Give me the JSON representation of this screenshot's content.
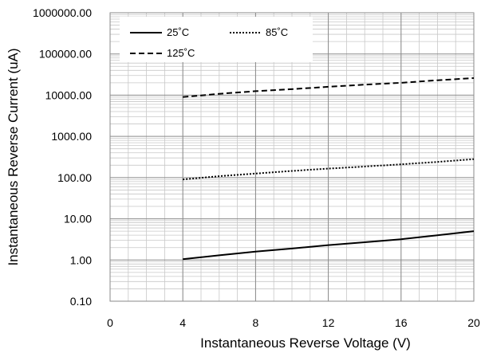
{
  "chart_data": {
    "type": "line",
    "xlabel": "Instantaneous  Reverse Voltage (V)",
    "ylabel": "Instantaneous Reverse Current (uA)",
    "y_scale": "log",
    "xlim": [
      0,
      20
    ],
    "ylim": [
      0.1,
      1000000
    ],
    "x_ticks": [
      0,
      4,
      8,
      12,
      16,
      20
    ],
    "x_tick_labels": [
      "0",
      "4",
      "8",
      "12",
      "16",
      "20"
    ],
    "y_ticks": [
      0.1,
      1,
      10,
      100,
      1000,
      10000,
      100000,
      1000000
    ],
    "y_tick_labels": [
      "0.10",
      "1.00",
      "10.00",
      "100.00",
      "1000.00",
      "10000.00",
      "100000.00",
      "1000000.00"
    ],
    "grid": true,
    "legend_position": "top-left",
    "x": [
      4,
      6,
      8,
      10,
      12,
      14,
      16,
      18,
      20
    ],
    "series": [
      {
        "name": "25˚C",
        "style": "solid",
        "values": [
          1.05,
          1.3,
          1.6,
          1.9,
          2.3,
          2.7,
          3.2,
          4.0,
          5.0
        ]
      },
      {
        "name": "85˚C",
        "style": "dotted",
        "values": [
          90,
          108,
          125,
          145,
          165,
          185,
          210,
          240,
          280
        ]
      },
      {
        "name": "125˚C",
        "style": "dashed",
        "values": [
          9000,
          10800,
          12500,
          14000,
          16000,
          18000,
          20000,
          23000,
          26000
        ]
      }
    ]
  }
}
